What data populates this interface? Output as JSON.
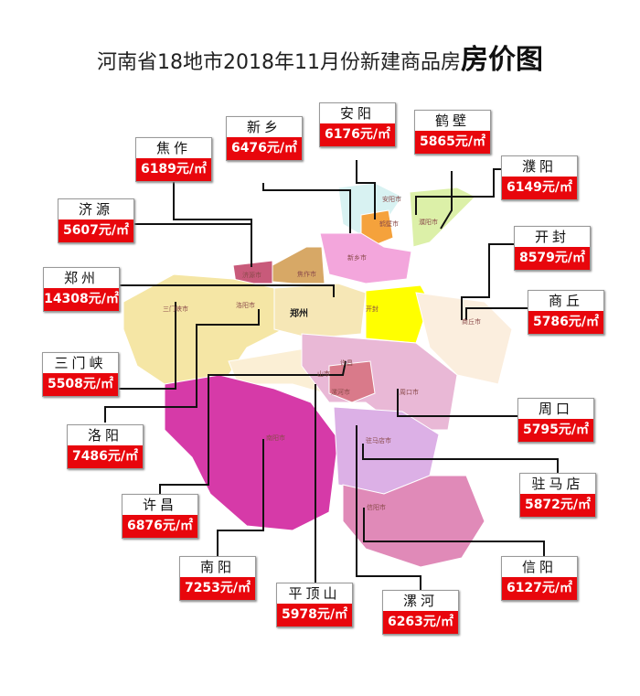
{
  "title": {
    "main": "河南省18地市2018年11月份新建商品房",
    "emphasis": "房价图"
  },
  "unit": "元/㎡",
  "cities": [
    {
      "name": "焦作",
      "price": "6189元/㎡",
      "map_label": "焦作市"
    },
    {
      "name": "新乡",
      "price": "6476元/㎡",
      "map_label": "新乡市"
    },
    {
      "name": "安阳",
      "price": "6176元/㎡",
      "map_label": "安阳市"
    },
    {
      "name": "鹤壁",
      "price": "5865元/㎡",
      "map_label": "鹤壁市"
    },
    {
      "name": "濮阳",
      "price": "6149元/㎡",
      "map_label": "濮阳市"
    },
    {
      "name": "济源",
      "price": "5607元/㎡",
      "map_label": "济源市"
    },
    {
      "name": "开封",
      "price": "8579元/㎡",
      "map_label": "开封"
    },
    {
      "name": "郑州",
      "price": "14308元/㎡",
      "map_label": "郑州"
    },
    {
      "name": "商丘",
      "price": "5786元/㎡",
      "map_label": "商丘市"
    },
    {
      "name": "三门峡",
      "price": "5508元/㎡",
      "map_label": "三门峡市"
    },
    {
      "name": "周口",
      "price": "5795元/㎡",
      "map_label": "周口市"
    },
    {
      "name": "洛阳",
      "price": "7486元/㎡",
      "map_label": "洛阳市"
    },
    {
      "name": "驻马店",
      "price": "5872元/㎡",
      "map_label": "驻马店市"
    },
    {
      "name": "许昌",
      "price": "6876元/㎡",
      "map_label": "许昌"
    },
    {
      "name": "南阳",
      "price": "7253元/㎡",
      "map_label": "南阳市"
    },
    {
      "name": "信阳",
      "price": "6127元/㎡",
      "map_label": "信阳市"
    },
    {
      "name": "平顶山",
      "price": "5978元/㎡",
      "map_label": "山市"
    },
    {
      "name": "漯河",
      "price": "6263元/㎡",
      "map_label": "漯河市"
    }
  ],
  "colors": {
    "price_bg": "#e8060c",
    "zhengzhou": "#f6e7b6",
    "kaifeng": "#ffff00",
    "nanyang": "#d63aa8",
    "xinxiang": "#f3a6dc"
  }
}
